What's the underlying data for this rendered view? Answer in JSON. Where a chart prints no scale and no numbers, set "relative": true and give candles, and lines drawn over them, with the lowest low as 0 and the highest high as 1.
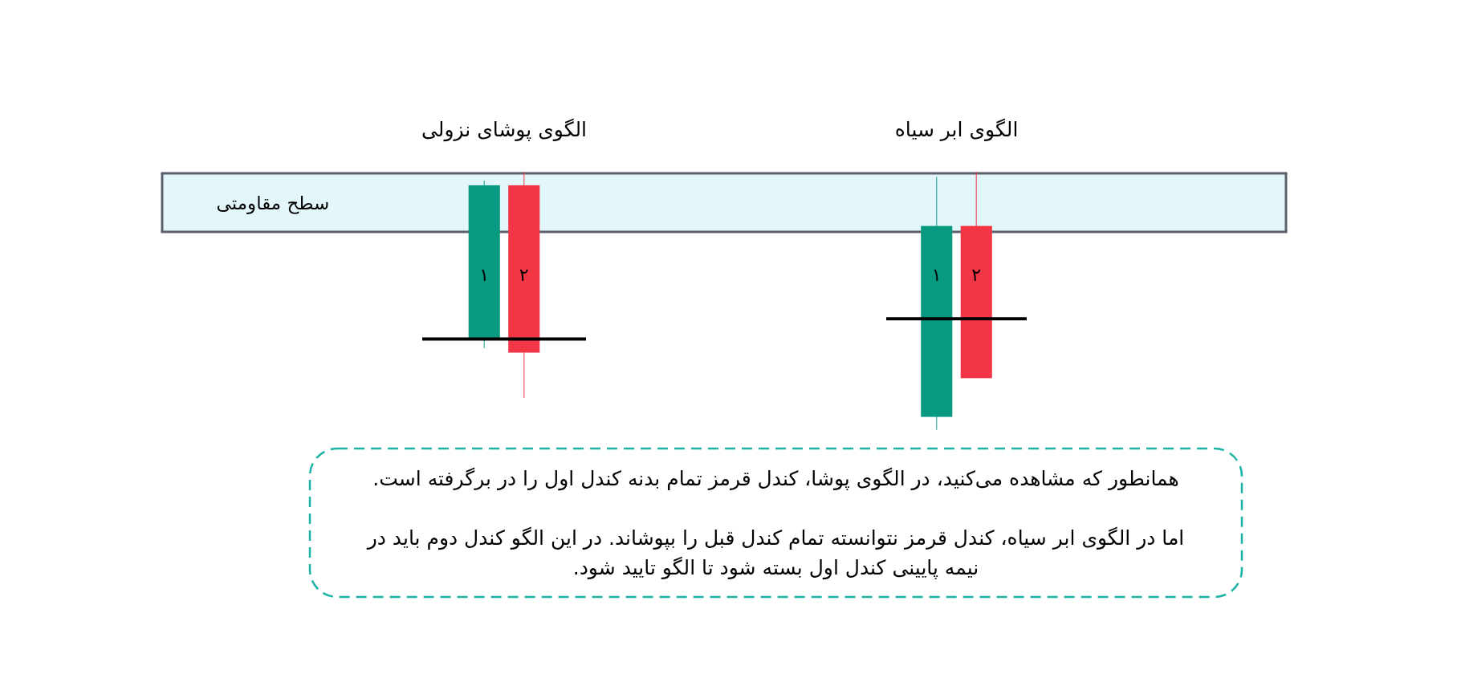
{
  "chart_data": [
    {
      "type": "candlestick",
      "title": "الگوی پوشای نزولی",
      "categories": [
        "۱",
        "۲"
      ],
      "ohlc": [
        [
          0.26,
          0.96,
          0.22,
          0.94
        ],
        [
          0.94,
          1,
          0,
          0.2
        ]
      ],
      "colors": [
        "#089981",
        "#f23645"
      ],
      "relative": true,
      "ref_lines": [
        {
          "axis": "y",
          "value": 0.26,
          "color": "#000000"
        }
      ],
      "bands": [
        {
          "axis": "y",
          "from": 0.734,
          "to": 0.993,
          "label": "سطح مقاومتی",
          "color": "#e3f6fa"
        }
      ]
    },
    {
      "type": "candlestick",
      "title": "الگوی ابر سیاه",
      "categories": [
        "۱",
        "۲"
      ],
      "ohlc": [
        [
          0.05,
          0.98,
          0,
          0.79
        ],
        [
          0.79,
          1,
          0.2,
          0.2
        ]
      ],
      "colors": [
        "#089981",
        "#f23645"
      ],
      "relative": true,
      "ref_lines": [
        {
          "axis": "y",
          "value": 0.43,
          "color": "#000000"
        }
      ],
      "bands": [
        {
          "axis": "y",
          "from": 0.767,
          "to": 0.994,
          "color": "#e3f6fa"
        }
      ],
      "annotations": [
        "همانطور که مشاهده می‌کنید، در الگوی پوشا، کندل قرمز تمام بدنه کندل اول را در برگرفته است.",
        "اما در الگوی ابر سیاه، کندل قرمز نتوانسته تمام کندل قبل را بپوشاند. در این الگو کندل دوم باید در نیمه پایینی کندل اول بسته شود تا الگو تایید شود."
      ]
    }
  ]
}
